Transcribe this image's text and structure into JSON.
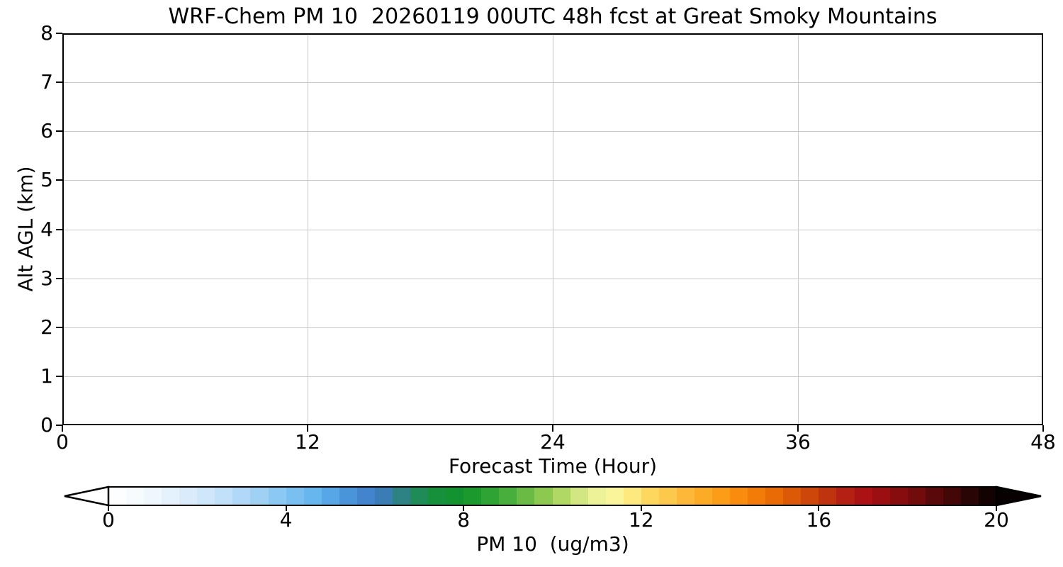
{
  "figure": {
    "title": "WRF-Chem PM 10  20260119 00UTC 48h fcst at Great Smoky Mountains",
    "background": "#ffffff"
  },
  "axes": {
    "xlabel": "Forecast Time (Hour)",
    "ylabel": "Alt AGL (km)",
    "xlim": [
      0,
      48
    ],
    "ylim": [
      0,
      8
    ],
    "x_ticks": [
      {
        "value": 0,
        "label": "0"
      },
      {
        "value": 12,
        "label": "12"
      },
      {
        "value": 24,
        "label": "24"
      },
      {
        "value": 36,
        "label": "36"
      },
      {
        "value": 48,
        "label": "48"
      }
    ],
    "y_ticks": [
      {
        "value": 0,
        "label": "0"
      },
      {
        "value": 1,
        "label": "1"
      },
      {
        "value": 2,
        "label": "2"
      },
      {
        "value": 3,
        "label": "3"
      },
      {
        "value": 4,
        "label": "4"
      },
      {
        "value": 5,
        "label": "5"
      },
      {
        "value": 6,
        "label": "6"
      },
      {
        "value": 7,
        "label": "7"
      },
      {
        "value": 8,
        "label": "8"
      }
    ],
    "grid_color": "#c8c8c8",
    "spine_color": "#000000"
  },
  "colorbar": {
    "label": "PM 10  (ug/m3)",
    "vmin": 0,
    "vmax": 20,
    "extend": "both",
    "under_color": "#ffffff",
    "over_color": "#070101",
    "n_segments": 50,
    "ticks": [
      {
        "value": 0,
        "label": "0"
      },
      {
        "value": 4,
        "label": "4"
      },
      {
        "value": 8,
        "label": "8"
      },
      {
        "value": 12,
        "label": "12"
      },
      {
        "value": 16,
        "label": "16"
      },
      {
        "value": 20,
        "label": "20"
      }
    ],
    "stops": [
      [
        0.0,
        "#ffffff"
      ],
      [
        0.04,
        "#f3f9fe"
      ],
      [
        0.08,
        "#e0effc"
      ],
      [
        0.12,
        "#c9e4fa"
      ],
      [
        0.16,
        "#a8d5f6"
      ],
      [
        0.2,
        "#82c5f1"
      ],
      [
        0.235,
        "#62b5ee"
      ],
      [
        0.265,
        "#4c99dd"
      ],
      [
        0.3,
        "#3f7cc9"
      ],
      [
        0.32,
        "#357d9e"
      ],
      [
        0.34,
        "#26876a"
      ],
      [
        0.36,
        "#188e41"
      ],
      [
        0.4,
        "#11942a"
      ],
      [
        0.43,
        "#2ea434"
      ],
      [
        0.46,
        "#57b440"
      ],
      [
        0.49,
        "#8cc951"
      ],
      [
        0.515,
        "#b9dc6a"
      ],
      [
        0.54,
        "#e2ee90"
      ],
      [
        0.565,
        "#f9f7a1"
      ],
      [
        0.585,
        "#fdee87"
      ],
      [
        0.605,
        "#fdda62"
      ],
      [
        0.63,
        "#fdc94c"
      ],
      [
        0.655,
        "#fdb434"
      ],
      [
        0.68,
        "#fca51c"
      ],
      [
        0.705,
        "#fa9010"
      ],
      [
        0.73,
        "#f37b08"
      ],
      [
        0.755,
        "#e76706"
      ],
      [
        0.78,
        "#d55108"
      ],
      [
        0.805,
        "#c2390d"
      ],
      [
        0.825,
        "#b72311"
      ],
      [
        0.85,
        "#aa1213"
      ],
      [
        0.875,
        "#970e10"
      ],
      [
        0.9,
        "#7d0b0d"
      ],
      [
        0.925,
        "#600a0b"
      ],
      [
        0.95,
        "#430708"
      ],
      [
        0.975,
        "#240404"
      ],
      [
        1.0,
        "#070101"
      ]
    ]
  },
  "chart_data": {
    "type": "heatmap",
    "title": "WRF-Chem PM 10  20260119 00UTC 48h fcst at Great Smoky Mountains",
    "xlabel": "Forecast Time (Hour)",
    "ylabel": "Alt AGL (km)",
    "xlim": [
      0,
      48
    ],
    "ylim": [
      0,
      8
    ],
    "x_ticks": [
      0,
      12,
      24,
      36,
      48
    ],
    "y_ticks": [
      0,
      1,
      2,
      3,
      4,
      5,
      6,
      7,
      8
    ],
    "grid": true,
    "field": "PM 10 concentration curtain (time vs altitude)",
    "values": "no contoured PM 10 signal visible; entire cross-section rendered blank/white (≈ 0 ug/m3 for all hours 0-48 and altitudes 0-8 km)",
    "colorbar": {
      "label": "PM 10  (ug/m3)",
      "range": [
        0,
        20
      ],
      "ticks": [
        0,
        4,
        8,
        12,
        16,
        20
      ],
      "extend": "both",
      "legend_position": "bottom horizontal"
    }
  }
}
